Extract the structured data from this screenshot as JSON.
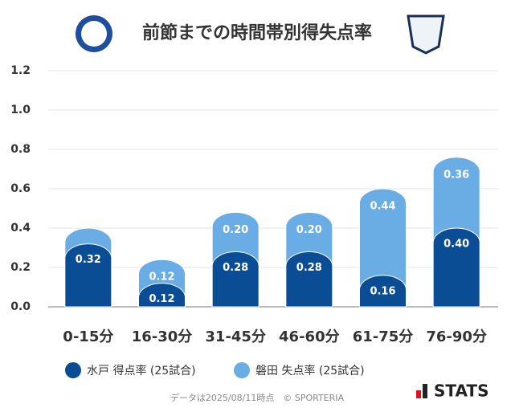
{
  "chart_data": {
    "type": "bar",
    "stacked": true,
    "title": "前節までの時間帯別得失点率",
    "categories": [
      "0-15分",
      "16-30分",
      "31-45分",
      "46-60分",
      "61-75分",
      "76-90分"
    ],
    "series": [
      {
        "name": "水戸 得点率 (25試合)",
        "color": "#0b4d94",
        "values": [
          0.32,
          0.12,
          0.28,
          0.28,
          0.16,
          0.4
        ]
      },
      {
        "name": "磐田 失点率 (25試合)",
        "color": "#6aade4",
        "values": [
          0.08,
          0.12,
          0.2,
          0.2,
          0.44,
          0.36
        ],
        "value_labels": [
          null,
          "0.12",
          "0.20",
          "0.20",
          "0.44",
          "0.36"
        ]
      }
    ],
    "ylim": [
      0,
      1.2
    ],
    "yticks": [
      {
        "value": 0,
        "label": "0.0"
      },
      0.2,
      0.4,
      0.6,
      0.8,
      {
        "value": 1,
        "label": "1.0"
      },
      1.2
    ],
    "grid": true,
    "footer": "データは2025/08/11時点　© SPORTERIA",
    "brand": "STATS"
  }
}
